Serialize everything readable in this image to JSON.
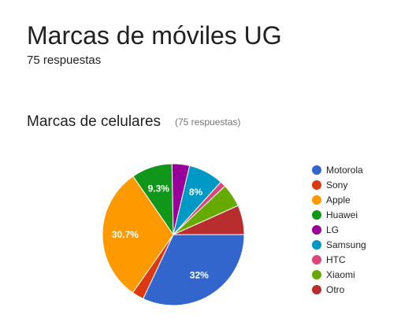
{
  "form": {
    "title": "Marcas de móviles UG",
    "response_count": "75 respuestas"
  },
  "question": {
    "title": "Marcas de celulares",
    "response_count": "(75 respuestas)"
  },
  "chart_data": {
    "type": "pie",
    "title": "Marcas de celulares",
    "legend_position": "right",
    "slices": [
      {
        "label": "Motorola",
        "percent": 32.0,
        "display": "32%",
        "color": "#3366cc"
      },
      {
        "label": "Sony",
        "percent": 2.7,
        "display": "",
        "color": "#dc3912"
      },
      {
        "label": "Apple",
        "percent": 30.7,
        "display": "30.7%",
        "color": "#ff9900"
      },
      {
        "label": "Huawei",
        "percent": 9.3,
        "display": "9.3%",
        "color": "#109618"
      },
      {
        "label": "LG",
        "percent": 4.0,
        "display": "",
        "color": "#990099"
      },
      {
        "label": "Samsung",
        "percent": 8.0,
        "display": "8%",
        "color": "#0099c6"
      },
      {
        "label": "HTC",
        "percent": 1.3,
        "display": "",
        "color": "#dd4477"
      },
      {
        "label": "Xiaomi",
        "percent": 5.3,
        "display": "",
        "color": "#66aa00"
      },
      {
        "label": "Otro",
        "percent": 6.7,
        "display": "",
        "color": "#b82e2e"
      }
    ]
  }
}
